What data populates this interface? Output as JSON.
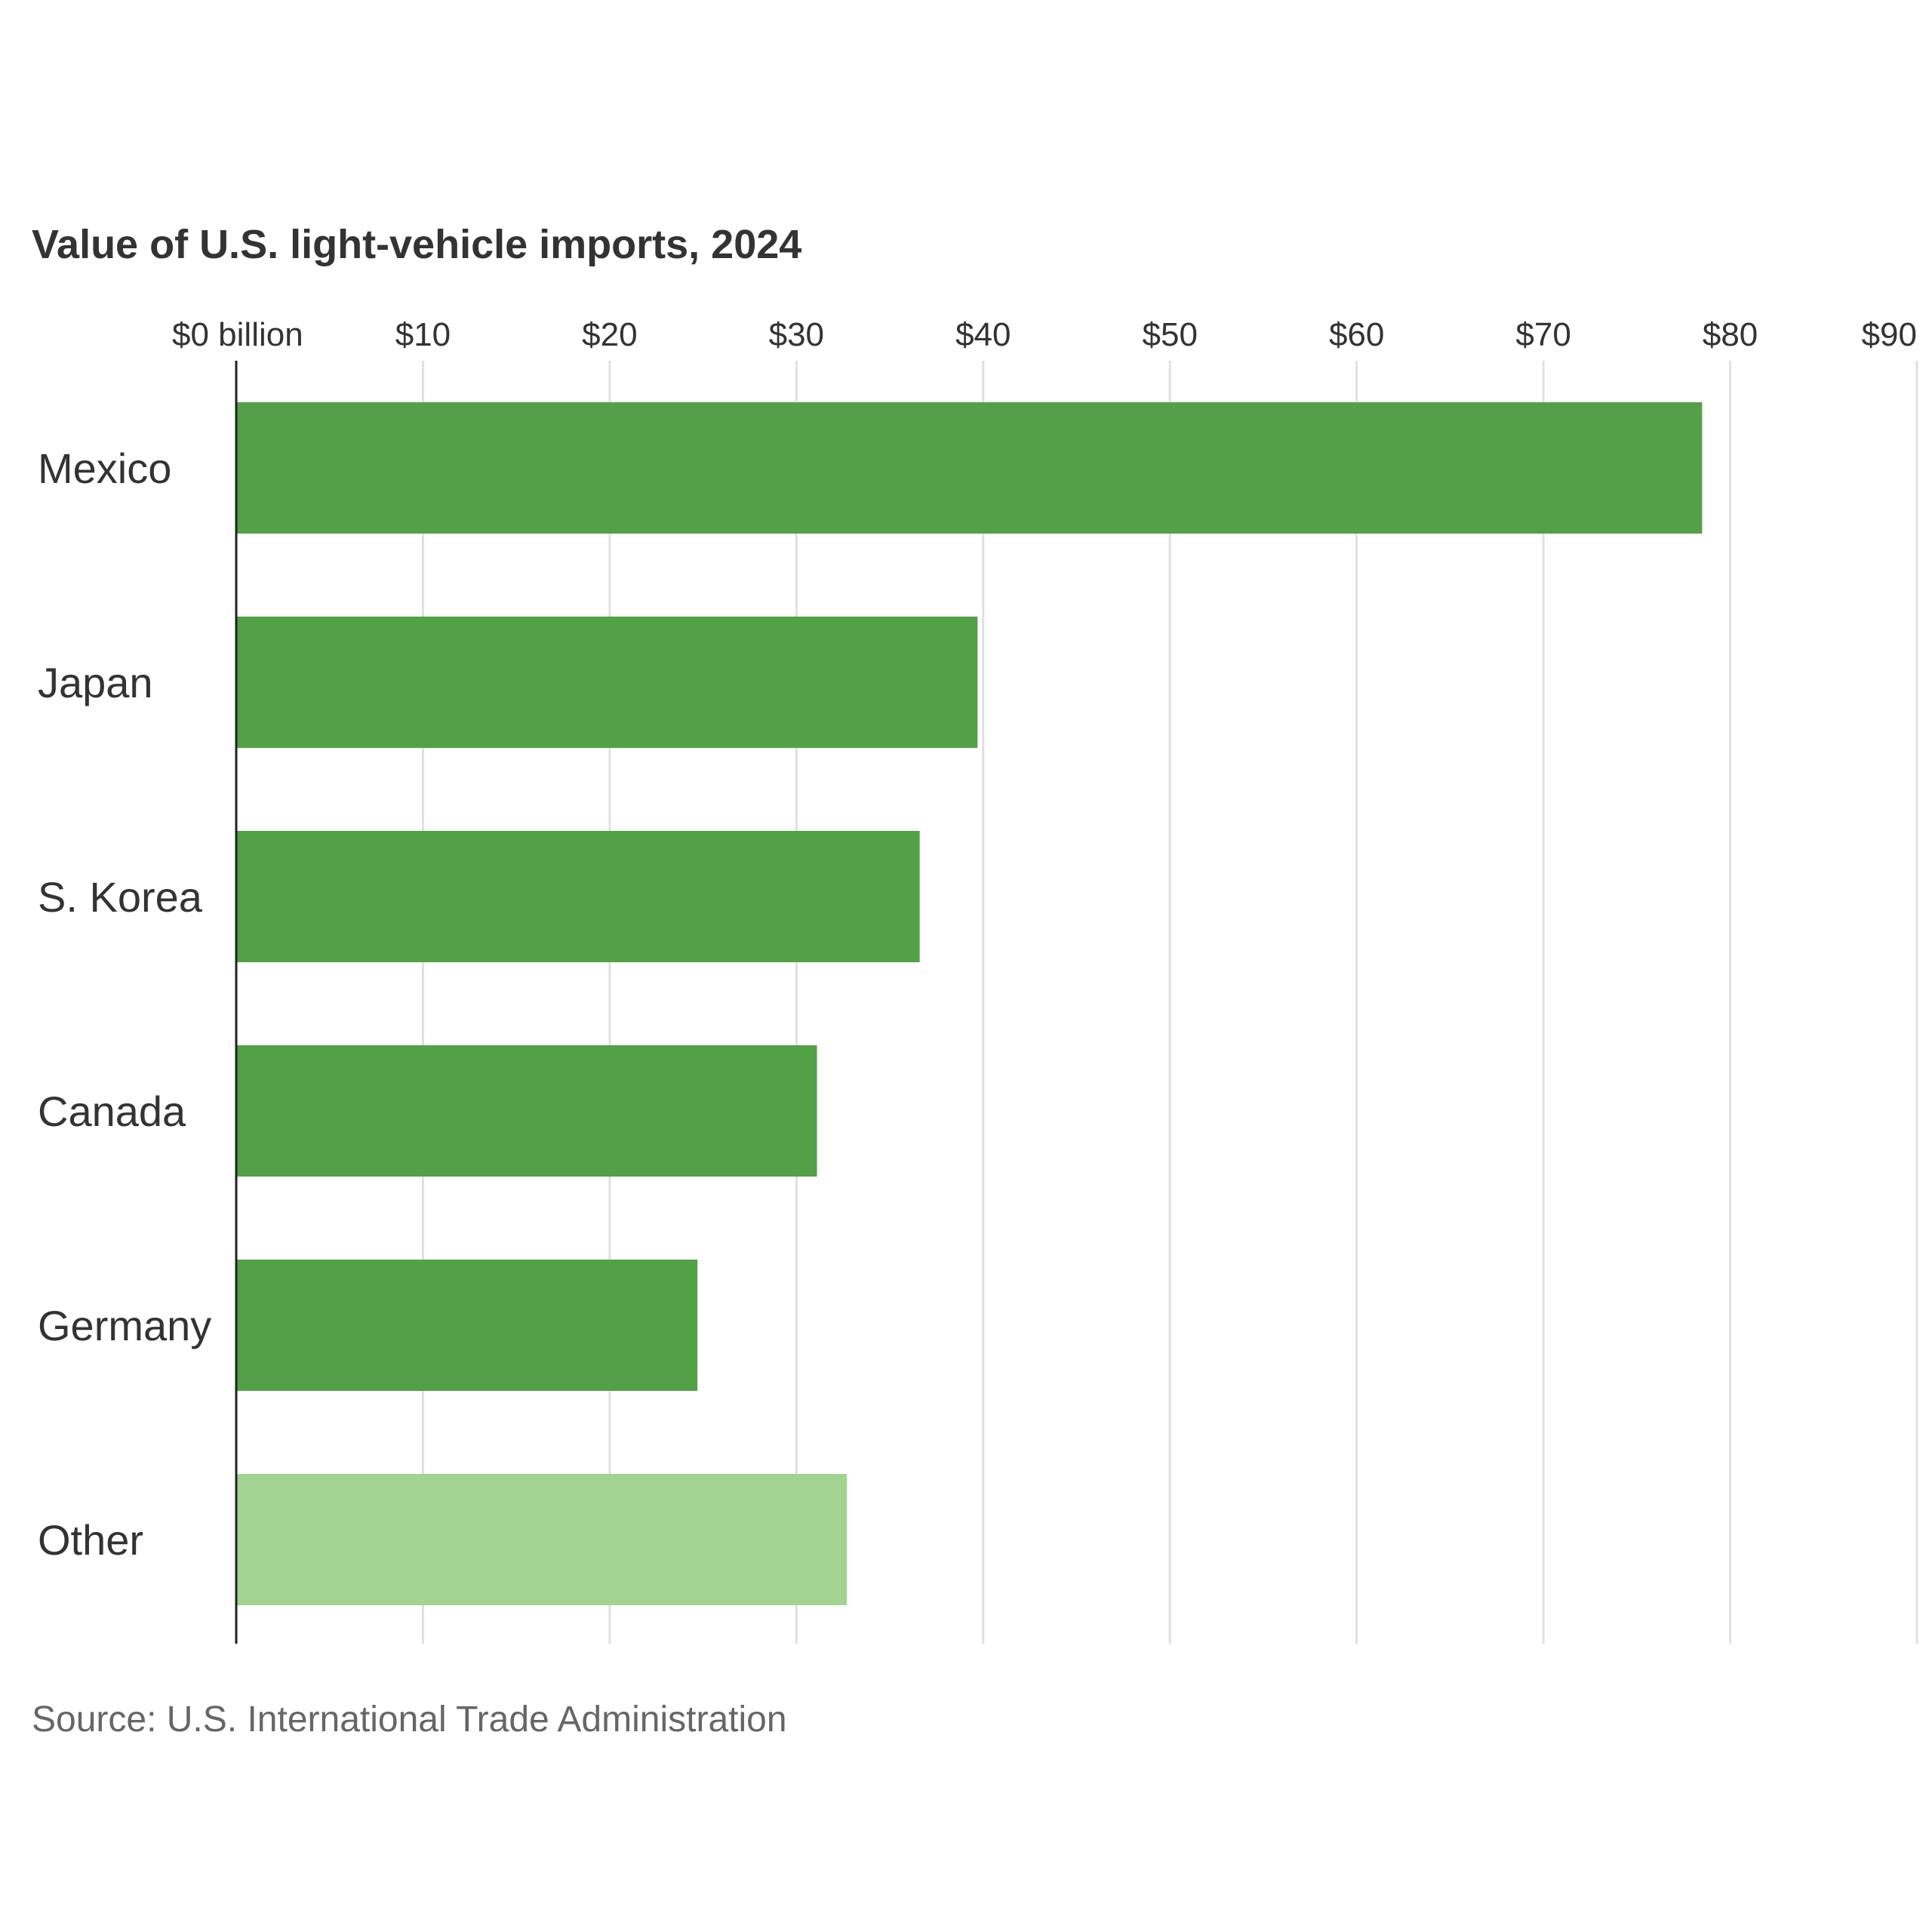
{
  "chart_data": {
    "type": "bar",
    "orientation": "horizontal",
    "title": "Value of U.S. light-vehicle imports, 2024",
    "categories": [
      "Mexico",
      "Japan",
      "S. Korea",
      "Canada",
      "Germany",
      "Other"
    ],
    "values": [
      78.5,
      39.7,
      36.6,
      31.1,
      24.7,
      32.7
    ],
    "bar_colors": [
      "#54a048",
      "#54a048",
      "#54a048",
      "#54a048",
      "#54a048",
      "#a3d393"
    ],
    "x_ticks": [
      0,
      10,
      20,
      30,
      40,
      50,
      60,
      70,
      80,
      90
    ],
    "x_tick_labels": [
      "$0 billion",
      "$10",
      "$20",
      "$30",
      "$40",
      "$50",
      "$60",
      "$70",
      "$80",
      "$90"
    ],
    "xlim": [
      0,
      90
    ],
    "tick_position": "top",
    "grid": true,
    "source": "Source: U.S. International Trade Administration"
  },
  "colors": {
    "primary_bar": "#54a048",
    "other_bar": "#a3d393",
    "grid": "#e0e0e0",
    "axis": "#222222",
    "text": "#333333",
    "source_text": "#666666"
  }
}
